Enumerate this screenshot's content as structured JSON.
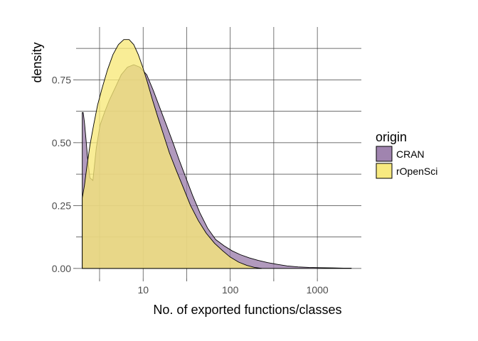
{
  "chart_data": {
    "type": "area",
    "title": "",
    "xlabel": "No. of exported functions/classes",
    "ylabel": "density",
    "x_scale": "log10",
    "xlim": [
      1.7,
      3200
    ],
    "ylim": [
      -0.04,
      0.96
    ],
    "x_ticks": [
      10,
      100,
      1000
    ],
    "x_tick_labels": [
      "10",
      "100",
      "1000"
    ],
    "x_minor_ticks": [
      3.16,
      31.6,
      316
    ],
    "y_ticks": [
      0,
      0.25,
      0.5,
      0.75
    ],
    "y_tick_labels": [
      "0.00",
      "0.25",
      "0.50",
      "0.75"
    ],
    "y_minor_ticks": [
      0.125,
      0.375,
      0.625,
      0.875
    ],
    "grid": true,
    "legend": {
      "title": "origin",
      "placement": "right"
    },
    "series": [
      {
        "name": "CRAN",
        "color": "#9b7dab",
        "x": [
          2,
          2.05,
          2.12,
          2.2,
          2.3,
          2.45,
          2.65,
          2.9,
          3.2,
          3.6,
          4.1,
          4.8,
          5.6,
          6.6,
          7.8,
          9.2,
          11,
          13,
          15.5,
          18.5,
          22,
          26,
          31,
          37,
          45,
          55,
          68,
          85,
          105,
          130,
          165,
          210,
          270,
          350,
          450,
          600,
          800,
          1100,
          1500,
          2000,
          2450
        ],
        "values": [
          0.62,
          0.62,
          0.58,
          0.52,
          0.44,
          0.36,
          0.35,
          0.48,
          0.57,
          0.62,
          0.67,
          0.72,
          0.77,
          0.8,
          0.81,
          0.8,
          0.77,
          0.71,
          0.64,
          0.57,
          0.5,
          0.43,
          0.36,
          0.29,
          0.22,
          0.16,
          0.115,
          0.09,
          0.07,
          0.055,
          0.042,
          0.032,
          0.023,
          0.016,
          0.01,
          0.006,
          0.004,
          0.003,
          0.002,
          0.001,
          0.001
        ]
      },
      {
        "name": "rOpenSci",
        "color": "#f7e879",
        "x": [
          2,
          2.12,
          2.25,
          2.45,
          2.7,
          3,
          3.4,
          3.9,
          4.5,
          5.2,
          6,
          6.9,
          7.8,
          8.8,
          9.9,
          11.2,
          12.8,
          14.8,
          17.2,
          20,
          24,
          29,
          35,
          43,
          53,
          66,
          82,
          100,
          125,
          155,
          190,
          230
        ],
        "values": [
          0.28,
          0.33,
          0.4,
          0.49,
          0.57,
          0.65,
          0.72,
          0.79,
          0.85,
          0.89,
          0.91,
          0.91,
          0.89,
          0.85,
          0.8,
          0.74,
          0.67,
          0.6,
          0.53,
          0.46,
          0.39,
          0.32,
          0.25,
          0.19,
          0.14,
          0.1,
          0.07,
          0.045,
          0.025,
          0.012,
          0.004,
          0
        ]
      }
    ]
  }
}
